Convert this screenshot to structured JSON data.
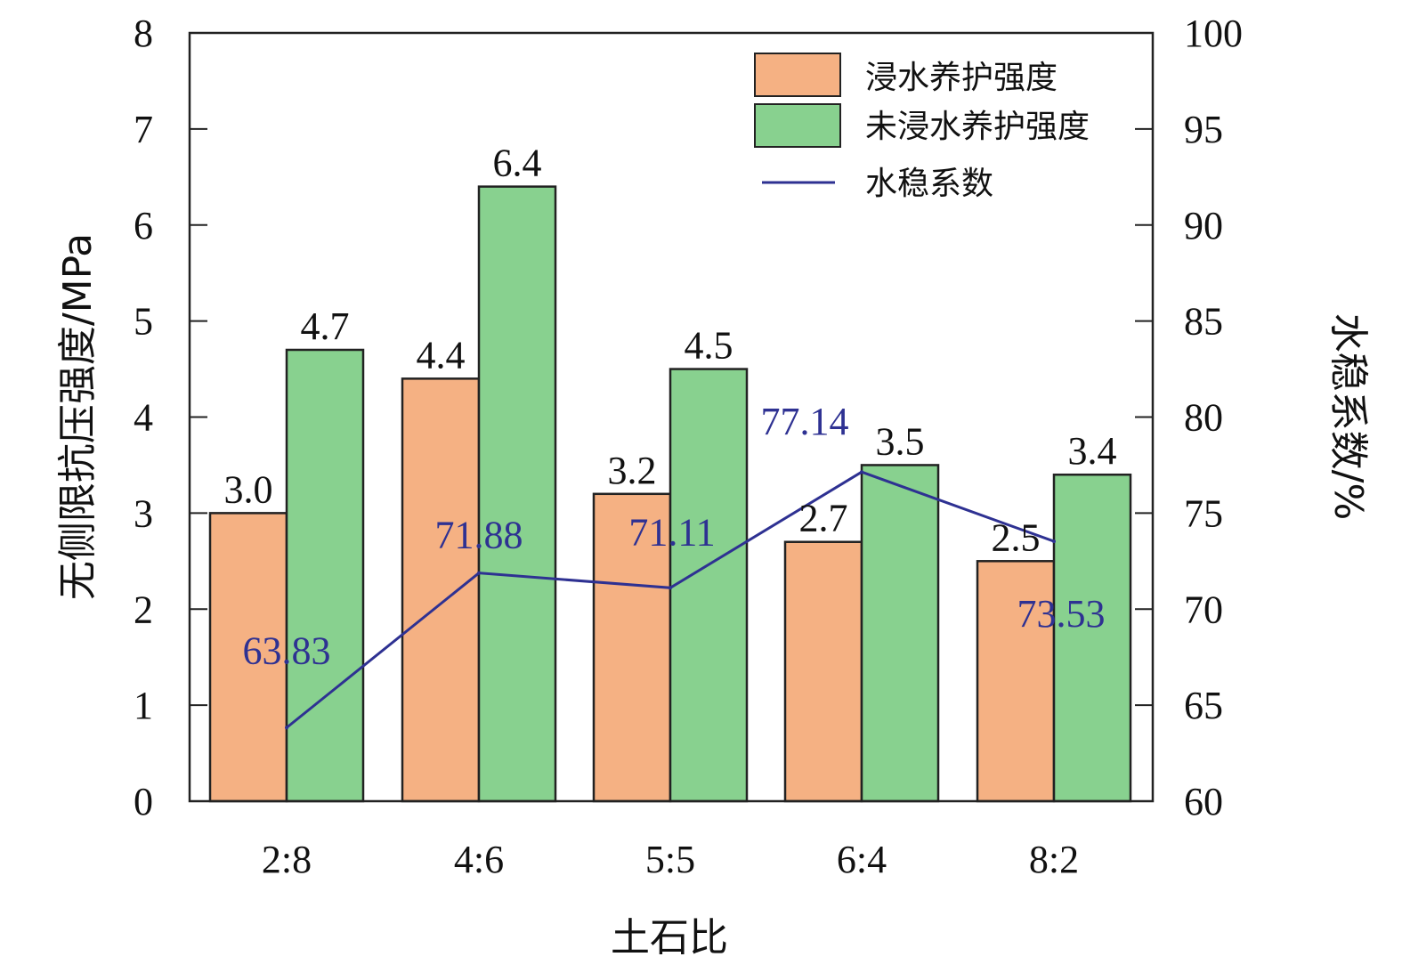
{
  "chart_data": {
    "type": "bar",
    "categories": [
      "2:8",
      "4:6",
      "5:5",
      "6:4",
      "8:2"
    ],
    "series": [
      {
        "name": "浸水养护强度",
        "values": [
          3.0,
          4.4,
          3.2,
          2.7,
          2.5
        ],
        "labels": [
          "3.0",
          "4.4",
          "3.2",
          "2.7",
          "2.5"
        ],
        "color": "#F5B183",
        "axis": "left",
        "kind": "bar"
      },
      {
        "name": "未浸水养护强度",
        "values": [
          4.7,
          6.4,
          4.5,
          3.5,
          3.4
        ],
        "labels": [
          "4.7",
          "6.4",
          "4.5",
          "3.5",
          "3.4"
        ],
        "color": "#88D18F",
        "axis": "left",
        "kind": "bar"
      },
      {
        "name": "水稳系数",
        "values": [
          63.83,
          71.88,
          71.11,
          77.14,
          73.53
        ],
        "labels": [
          "63.83",
          "71.88",
          "71.11",
          "77.14",
          "73.53"
        ],
        "color": "#2E3192",
        "axis": "right",
        "kind": "line"
      }
    ],
    "xlabel": "土石比",
    "ylabel": "无侧限抗压强度/MPa",
    "y2label": "水稳系数/%",
    "ylim": [
      0,
      8
    ],
    "y2lim": [
      60,
      100
    ],
    "yticks": [
      "0",
      "1",
      "2",
      "3",
      "4",
      "5",
      "6",
      "7",
      "8"
    ],
    "y2ticks": [
      "60",
      "65",
      "70",
      "75",
      "80",
      "85",
      "90",
      "95",
      "100"
    ],
    "legend_position": "top-right",
    "grid": false
  }
}
